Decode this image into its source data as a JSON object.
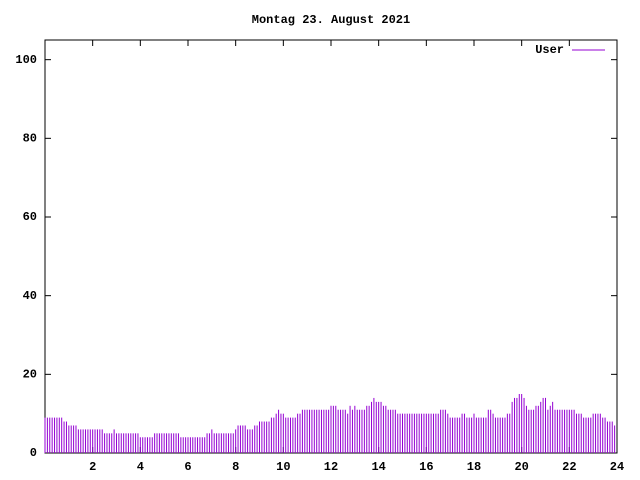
{
  "chart_data": {
    "type": "impulse",
    "title": "Montag 23. August 2021",
    "series": [
      {
        "name": "User",
        "color": "#9400d3",
        "values": [
          9,
          9,
          9,
          9,
          9,
          9,
          9,
          9,
          8,
          8,
          7,
          7,
          7,
          7,
          6,
          6,
          6,
          6,
          6,
          6,
          6,
          6,
          6,
          6,
          6,
          5,
          5,
          5,
          5,
          6,
          5,
          5,
          5,
          5,
          5,
          5,
          5,
          5,
          5,
          5,
          4,
          4,
          4,
          4,
          4,
          4,
          5,
          5,
          5,
          5,
          5,
          5,
          5,
          5,
          5,
          5,
          5,
          4,
          4,
          4,
          4,
          4,
          4,
          4,
          4,
          4,
          4,
          4,
          5,
          5,
          6,
          5,
          5,
          5,
          5,
          5,
          5,
          5,
          5,
          5,
          6,
          7,
          7,
          7,
          7,
          6,
          6,
          6,
          7,
          7,
          8,
          8,
          8,
          8,
          8,
          9,
          9,
          10,
          11,
          10,
          10,
          9,
          9,
          9,
          9,
          9,
          10,
          10,
          11,
          11,
          11,
          11,
          11,
          11,
          11,
          11,
          11,
          11,
          11,
          11,
          12,
          12,
          12,
          11,
          11,
          11,
          11,
          10,
          12,
          11,
          12,
          11,
          11,
          11,
          11,
          12,
          12,
          13,
          14,
          13,
          13,
          13,
          12,
          12,
          11,
          11,
          11,
          11,
          10,
          10,
          10,
          10,
          10,
          10,
          10,
          10,
          10,
          10,
          10,
          10,
          10,
          10,
          10,
          10,
          10,
          10,
          11,
          11,
          11,
          10,
          9,
          9,
          9,
          9,
          9,
          10,
          10,
          9,
          9,
          9,
          10,
          9,
          9,
          9,
          9,
          9,
          11,
          11,
          10,
          9,
          9,
          9,
          9,
          9,
          10,
          10,
          13,
          14,
          14,
          15,
          15,
          14,
          12,
          11,
          11,
          11,
          12,
          12,
          13,
          14,
          14,
          11,
          12,
          13,
          11,
          11,
          11,
          11,
          11,
          11,
          11,
          11,
          11,
          10,
          10,
          10,
          9,
          9,
          9,
          9,
          10,
          10,
          10,
          10,
          9,
          9,
          8,
          8,
          8,
          7
        ]
      }
    ],
    "x": [
      0,
      0.1,
      0.2,
      0.3,
      0.4,
      0.5,
      0.6,
      0.7,
      0.8,
      0.9,
      1,
      1.1,
      1.2,
      1.3,
      1.4,
      1.5,
      1.6,
      1.7,
      1.8,
      1.9,
      2,
      2.1,
      2.2,
      2.3,
      2.4,
      2.5,
      2.6,
      2.7,
      2.8,
      2.9,
      3,
      3.1,
      3.2,
      3.3,
      3.4,
      3.5,
      3.6,
      3.7,
      3.8,
      3.9,
      4,
      4.1,
      4.2,
      4.3,
      4.4,
      4.5,
      4.6,
      4.7,
      4.8,
      4.9,
      5,
      5.1,
      5.2,
      5.3,
      5.4,
      5.5,
      5.6,
      5.7,
      5.8,
      5.9,
      6,
      6.1,
      6.2,
      6.3,
      6.4,
      6.5,
      6.6,
      6.7,
      6.8,
      6.9,
      7,
      7.1,
      7.2,
      7.3,
      7.4,
      7.5,
      7.6,
      7.7,
      7.8,
      7.9,
      8,
      8.1,
      8.2,
      8.3,
      8.4,
      8.5,
      8.6,
      8.7,
      8.8,
      8.9,
      9,
      9.1,
      9.2,
      9.3,
      9.4,
      9.5,
      9.6,
      9.7,
      9.8,
      9.9,
      10,
      10.1,
      10.2,
      10.3,
      10.4,
      10.5,
      10.6,
      10.7,
      10.8,
      10.9,
      11,
      11.1,
      11.2,
      11.3,
      11.4,
      11.5,
      11.6,
      11.7,
      11.8,
      11.9,
      12,
      12.1,
      12.2,
      12.3,
      12.4,
      12.5,
      12.6,
      12.7,
      12.8,
      12.9,
      13,
      13.1,
      13.2,
      13.3,
      13.4,
      13.5,
      13.6,
      13.7,
      13.8,
      13.9,
      14,
      14.1,
      14.2,
      14.3,
      14.4,
      14.5,
      14.6,
      14.7,
      14.8,
      14.9,
      15,
      15.1,
      15.2,
      15.3,
      15.4,
      15.5,
      15.6,
      15.7,
      15.8,
      15.9,
      16,
      16.1,
      16.2,
      16.3,
      16.4,
      16.5,
      16.6,
      16.7,
      16.8,
      16.9,
      17,
      17.1,
      17.2,
      17.3,
      17.4,
      17.5,
      17.6,
      17.7,
      17.8,
      17.9,
      18,
      18.1,
      18.2,
      18.3,
      18.4,
      18.5,
      18.6,
      18.7,
      18.8,
      18.9,
      19,
      19.1,
      19.2,
      19.3,
      19.4,
      19.5,
      19.6,
      19.7,
      19.8,
      19.9,
      20,
      20.1,
      20.2,
      20.3,
      20.4,
      20.5,
      20.6,
      20.7,
      20.8,
      20.9,
      21,
      21.1,
      21.2,
      21.3,
      21.4,
      21.5,
      21.6,
      21.7,
      21.8,
      21.9,
      22,
      22.1,
      22.2,
      22.3,
      22.4,
      22.5,
      22.6,
      22.7,
      22.8,
      22.9,
      23,
      23.1,
      23.2,
      23.3,
      23.4,
      23.5,
      23.6,
      23.7,
      23.8,
      23.9
    ],
    "xlim": [
      0,
      24
    ],
    "xticks": [
      2,
      4,
      6,
      8,
      10,
      12,
      14,
      16,
      18,
      20,
      22,
      24
    ],
    "ylim": [
      0,
      105
    ],
    "yticks": [
      0,
      20,
      40,
      60,
      80,
      100
    ],
    "legend": "upper right"
  }
}
